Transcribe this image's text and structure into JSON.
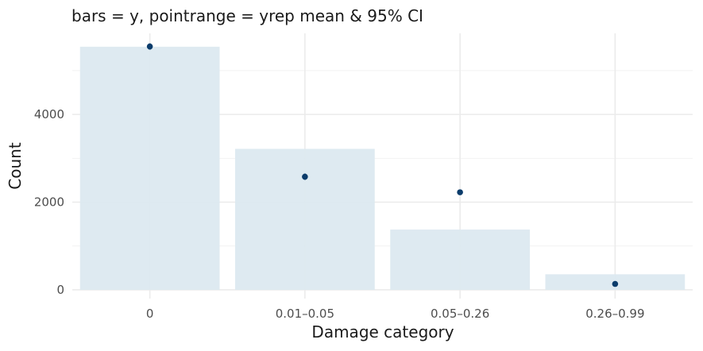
{
  "chart_data": {
    "type": "bar",
    "title": "bars = y, pointrange = yrep mean & 95% CI",
    "xlabel": "Damage category",
    "ylabel": "Count",
    "categories": [
      "0",
      "0.01–0.05",
      "0.05–0.26",
      "0.26–0.99"
    ],
    "ylim": [
      -200,
      5850
    ],
    "yticks": [
      0,
      2000,
      4000
    ],
    "grid": true,
    "series": [
      {
        "values": [
          5545,
          3215,
          1375,
          355
        ],
        "color": "#dce9f0"
      },
      {
        "mark": "pointrange",
        "values": [
          5550,
          2580,
          2225,
          135
        ],
        "lower": [
          5480,
          2510,
          2180,
          110
        ],
        "upper": [
          5620,
          2650,
          2270,
          160
        ],
        "color": "#0b3c6b"
      }
    ]
  }
}
